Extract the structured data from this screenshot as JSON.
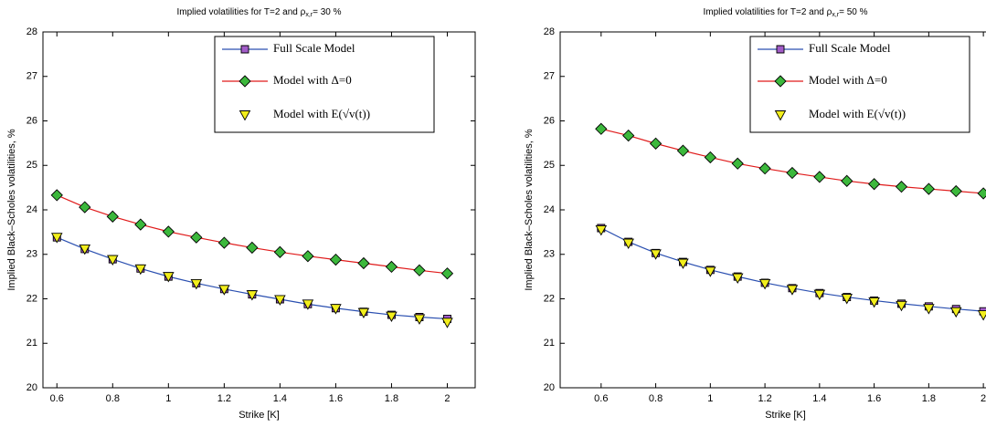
{
  "chart_data": [
    {
      "type": "line",
      "title": [
        "Implied volatilities for T=2 and ρ",
        "x,r",
        "= 30 %"
      ],
      "xlabel": "Strike [K]",
      "ylabel": "Implied Black–Scholes volatilities, %",
      "x": [
        0.6,
        0.7,
        0.8,
        0.9,
        1.0,
        1.1,
        1.2,
        1.3,
        1.4,
        1.5,
        1.6,
        1.7,
        1.8,
        1.9,
        2.0
      ],
      "xlim": [
        0.55,
        2.1
      ],
      "xticks": [
        0.6,
        0.8,
        1,
        1.2,
        1.4,
        1.6,
        1.8,
        2
      ],
      "ylim": [
        20,
        28
      ],
      "yticks": [
        20,
        21,
        22,
        23,
        24,
        25,
        26,
        27,
        28
      ],
      "legend": "upper right",
      "series": [
        {
          "name": "Full Scale Model",
          "color": "#2a4fb0",
          "marker": "square",
          "marker_color": "#a25cc8",
          "values": [
            23.38,
            23.12,
            22.89,
            22.68,
            22.5,
            22.35,
            22.22,
            22.1,
            21.99,
            21.88,
            21.79,
            21.71,
            21.64,
            21.59,
            21.55
          ]
        },
        {
          "name": "Model with Δ=0",
          "color": "#e01b1b",
          "marker": "diamond",
          "marker_color": "#3cb83c",
          "values": [
            24.33,
            24.06,
            23.85,
            23.67,
            23.51,
            23.38,
            23.26,
            23.15,
            23.05,
            22.96,
            22.88,
            22.8,
            22.72,
            22.64,
            22.57
          ]
        },
        {
          "name": "Model with E(√v(t))",
          "color": "none",
          "marker": "triangle-down",
          "marker_color": "#f2ee1c",
          "values": [
            23.38,
            23.12,
            22.88,
            22.67,
            22.5,
            22.34,
            22.21,
            22.09,
            21.98,
            21.88,
            21.78,
            21.69,
            21.61,
            21.55,
            21.47
          ]
        }
      ]
    },
    {
      "type": "line",
      "title": [
        "Implied volatilities for T=2 and ρ",
        "x,r",
        "= 50 %"
      ],
      "xlabel": "Strike [K]",
      "ylabel": "Implied Black–Scholes volatilities, %",
      "x": [
        0.6,
        0.7,
        0.8,
        0.9,
        1.0,
        1.1,
        1.2,
        1.3,
        1.4,
        1.5,
        1.6,
        1.7,
        1.8,
        1.9,
        2.0
      ],
      "xlim": [
        0.45,
        2.1
      ],
      "xticks": [
        0.6,
        0.8,
        1,
        1.2,
        1.4,
        1.6,
        1.8,
        2
      ],
      "ylim": [
        20,
        28
      ],
      "yticks": [
        20,
        21,
        22,
        23,
        24,
        25,
        26,
        27,
        28
      ],
      "legend": "upper right",
      "series": [
        {
          "name": "Full Scale Model",
          "color": "#2a4fb0",
          "marker": "square",
          "marker_color": "#a25cc8",
          "values": [
            23.59,
            23.28,
            23.03,
            22.83,
            22.65,
            22.5,
            22.36,
            22.24,
            22.13,
            22.04,
            21.96,
            21.89,
            21.83,
            21.77,
            21.72
          ]
        },
        {
          "name": "Model with Δ=0",
          "color": "#e01b1b",
          "marker": "diamond",
          "marker_color": "#3cb83c",
          "values": [
            25.82,
            25.67,
            25.49,
            25.33,
            25.18,
            25.04,
            24.93,
            24.83,
            24.74,
            24.65,
            24.58,
            24.52,
            24.47,
            24.42,
            24.37
          ]
        },
        {
          "name": "Model with E(√v(t))",
          "color": "none",
          "marker": "triangle-down",
          "marker_color": "#f2ee1c",
          "values": [
            23.55,
            23.25,
            23.01,
            22.8,
            22.62,
            22.47,
            22.34,
            22.21,
            22.1,
            22.01,
            21.93,
            21.85,
            21.78,
            21.71,
            21.64
          ]
        }
      ]
    }
  ]
}
